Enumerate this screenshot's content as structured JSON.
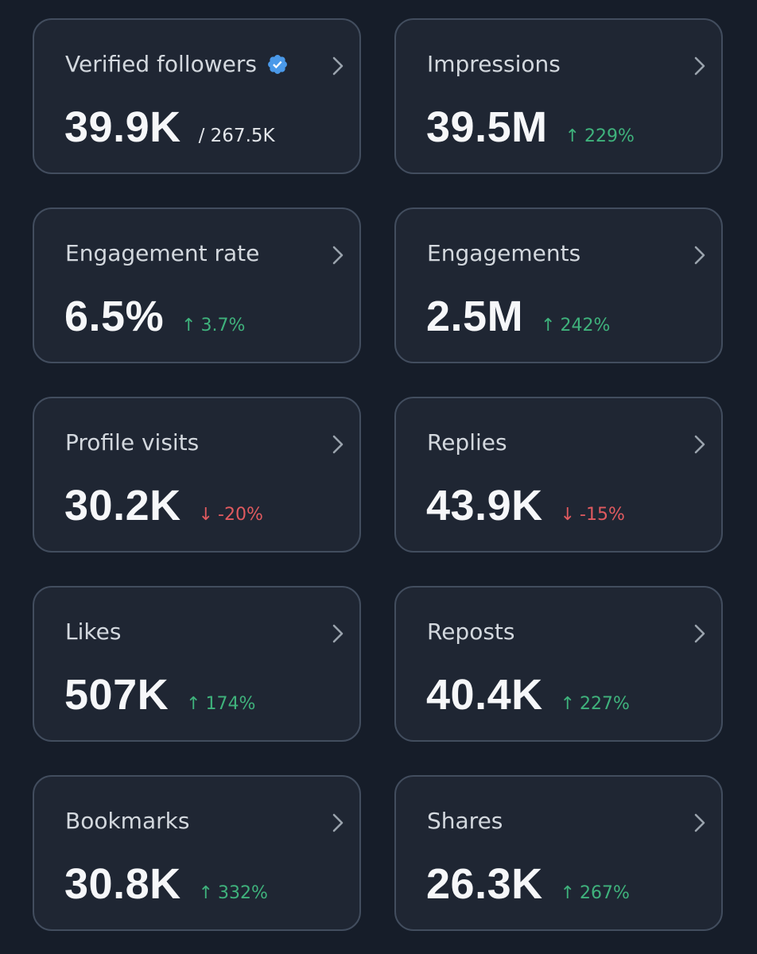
{
  "colors": {
    "background": "#161d29",
    "card": "#1f2633",
    "card_border": "#424d5e",
    "up": "#3fb27c",
    "down": "#e05a5f",
    "verified_badge": "#4a99e9"
  },
  "metrics": [
    {
      "label": "Verified followers",
      "value": "39.9K",
      "total": "/ 267.5K",
      "verified_icon": "verified-badge-icon"
    },
    {
      "label": "Impressions",
      "value": "39.5M",
      "arrow": "↑",
      "change": "229%",
      "direction": "up"
    },
    {
      "label": "Engagement rate",
      "value": "6.5%",
      "arrow": "↑",
      "change": "3.7%",
      "direction": "up"
    },
    {
      "label": "Engagements",
      "value": "2.5M",
      "arrow": "↑",
      "change": "242%",
      "direction": "up"
    },
    {
      "label": "Profile visits",
      "value": "30.2K",
      "arrow": "↓",
      "change": "-20%",
      "direction": "down"
    },
    {
      "label": "Replies",
      "value": "43.9K",
      "arrow": "↓",
      "change": "-15%",
      "direction": "down"
    },
    {
      "label": "Likes",
      "value": "507K",
      "arrow": "↑",
      "change": "174%",
      "direction": "up"
    },
    {
      "label": "Reposts",
      "value": "40.4K",
      "arrow": "↑",
      "change": "227%",
      "direction": "up"
    },
    {
      "label": "Bookmarks",
      "value": "30.8K",
      "arrow": "↑",
      "change": "332%",
      "direction": "up"
    },
    {
      "label": "Shares",
      "value": "26.3K",
      "arrow": "↑",
      "change": "267%",
      "direction": "up"
    }
  ]
}
